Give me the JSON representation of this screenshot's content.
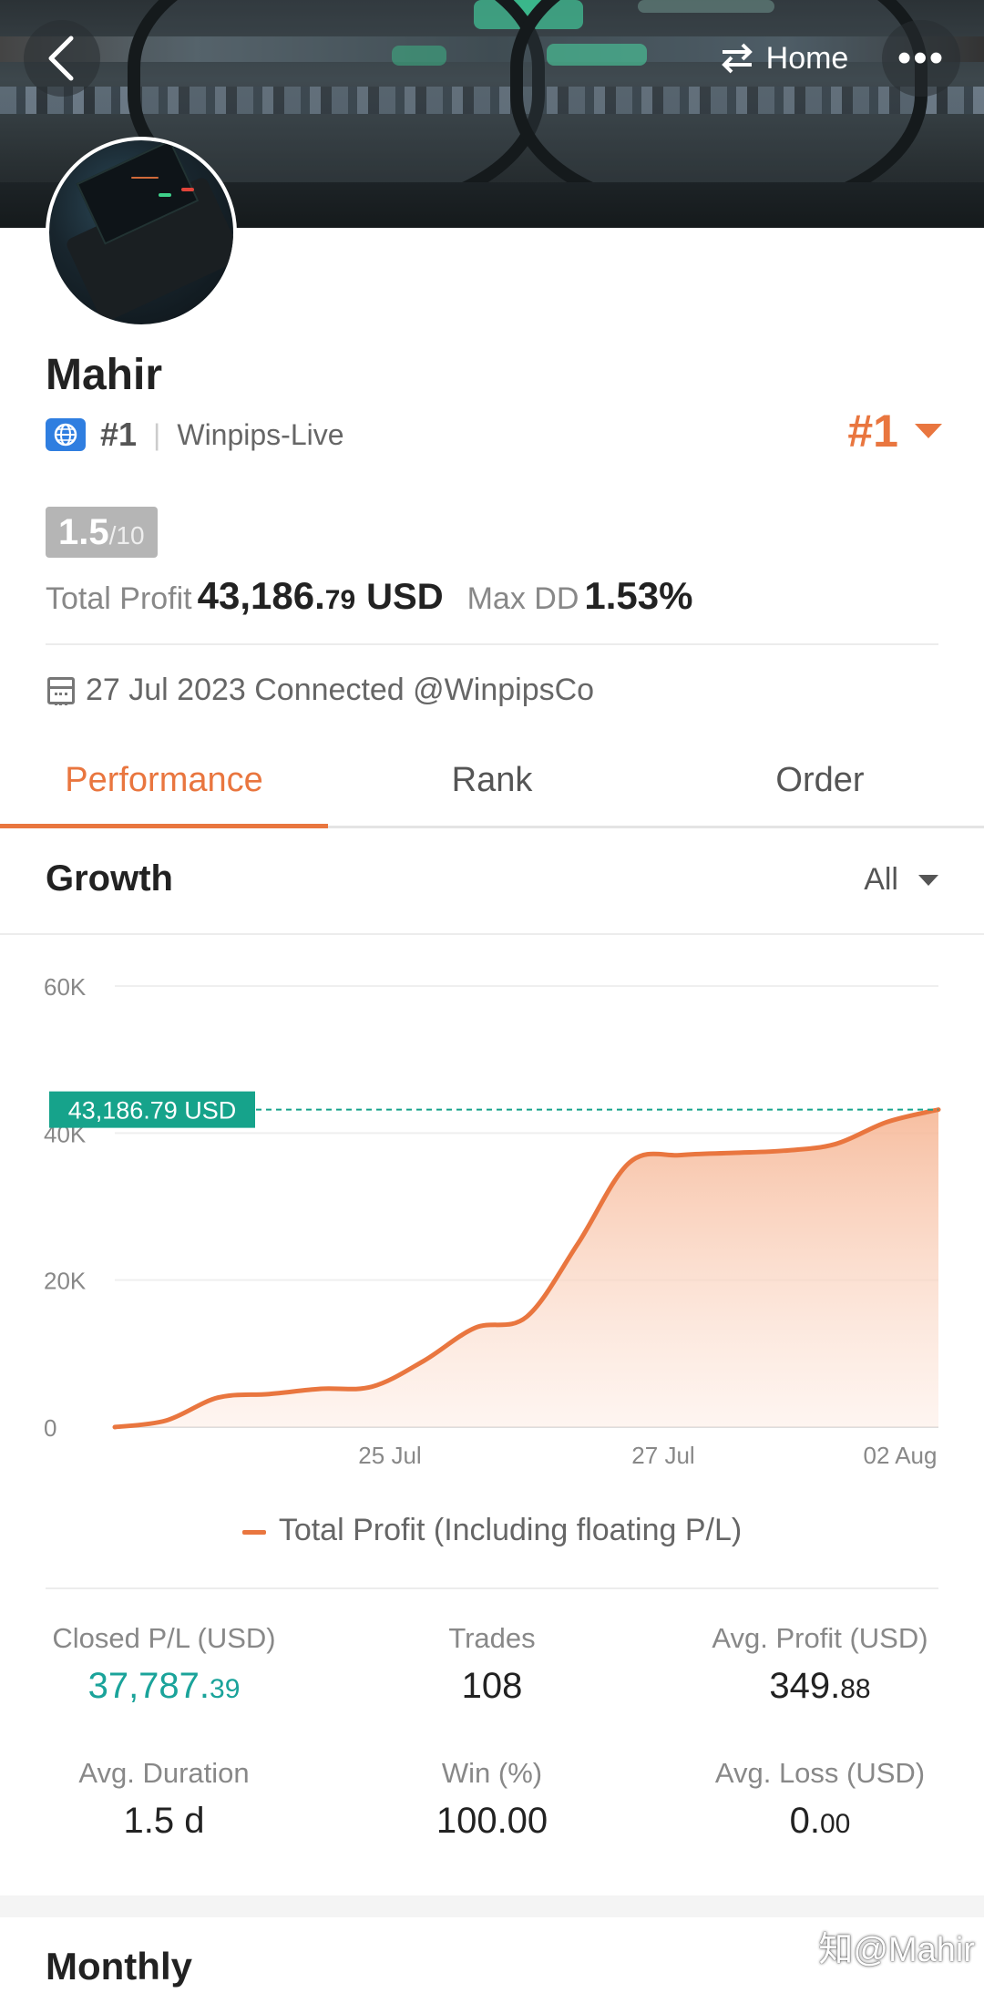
{
  "header": {
    "back_icon": "chevron-left-icon",
    "switch_icon": "swap-arrows-icon",
    "home_label": "Home",
    "more_icon": "more-dots-icon",
    "more_label": "•••"
  },
  "profile": {
    "name": "Mahir",
    "region_icon": "globe-icon",
    "region_rank": "#1",
    "server": "Winpips-Live",
    "rank_big": "#1",
    "score_main": "1.5",
    "score_den": "/10",
    "total_profit_label": "Total Profit",
    "total_profit_int": "43,186.",
    "total_profit_dec": "79",
    "total_profit_ccy": "USD",
    "max_dd_label": "Max DD",
    "max_dd_value": "1.53%",
    "connected_text": "27 Jul 2023 Connected @WinpipsCo"
  },
  "tabs": [
    {
      "label": "Performance",
      "active": true
    },
    {
      "label": "Rank",
      "active": false
    },
    {
      "label": "Order",
      "active": false
    }
  ],
  "growth": {
    "title": "Growth",
    "filter": "All"
  },
  "chart_data": {
    "type": "area",
    "y_ticks": [
      "60K",
      "40K",
      "20K",
      "0"
    ],
    "x_tick_labels": [
      "25 Jul",
      "27 Jul",
      "02 Aug"
    ],
    "ylim": [
      0,
      60000
    ],
    "current_value_label": "43,186.79 USD",
    "current_value": 43186.79,
    "series": [
      {
        "name": "Total Profit (Including floating P/L)",
        "values": [
          0,
          900,
          4000,
          4500,
          5200,
          5500,
          9000,
          13500,
          15000,
          25000,
          36000,
          37000,
          37300,
          37600,
          38500,
          41500,
          43186.79
        ]
      }
    ],
    "colors": {
      "line": "#e9763f",
      "fill": "#f8c4aa",
      "marker": "#16a38b"
    }
  },
  "stats": [
    {
      "label": "Closed P/L (USD)",
      "int": "37,787.",
      "dec": "39",
      "color": "green"
    },
    {
      "label": "Trades",
      "int": "108",
      "dec": "",
      "color": ""
    },
    {
      "label": "Avg. Profit (USD)",
      "int": "349.",
      "dec": "88",
      "color": ""
    },
    {
      "label": "Avg. Duration",
      "int": "1.5 d",
      "dec": "",
      "color": ""
    },
    {
      "label": "Win (%)",
      "int": "100.00",
      "dec": "",
      "color": ""
    },
    {
      "label": "Avg. Loss (USD)",
      "int": "0.",
      "dec": "00",
      "color": ""
    }
  ],
  "monthly_title": "Monthly",
  "watermark": "知@Mahir"
}
